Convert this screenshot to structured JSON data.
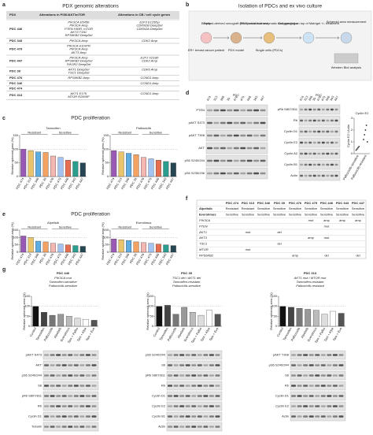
{
  "panel_a": {
    "letter": "a",
    "title": "PDX genomic alterations",
    "header": [
      "PDX",
      "Alterations in PI3K/AKT/mTOR",
      "Alterations in CB / cell cycle genes"
    ],
    "rows": [
      {
        "pdx": "PDC 446",
        "pi3k": [
          "PIK3CA E545K",
          "PIK3CA Amp",
          "PTEN H93R, mTOR",
          "AKT3 T15C",
          "RPS6KB2 DeepDel"
        ],
        "cellcycle": [
          "E2F3 E125fsp",
          "CDKN2B DeepDel",
          "CDKN2A DeepDel"
        ]
      },
      {
        "pdx": "PDC 343",
        "pi3k": [
          "PIK3CA Amp"
        ],
        "cellcycle": [
          "CDK2 Amp"
        ]
      },
      {
        "pdx": "PDC 479",
        "pi3k": [
          "PIK3CA H1047R",
          "PIK3CA Amp",
          "AKT3 Amp"
        ]
      },
      {
        "pdx": "PDC 447",
        "pi3k": [
          "PIK3CA Amp",
          "RPS6KB2 DeepDel",
          "PIK3R2 DeepDel"
        ],
        "cellcycle": [
          "E2F1 V219D",
          "CDK2 Amp"
        ]
      },
      {
        "pdx": "PDC 39",
        "pi3k": [
          "AKT1 DeepDel",
          "TSC1 DeepDel"
        ],
        "cellcycle": [
          "CDK6 Amp"
        ]
      },
      {
        "pdx": "PDC 476",
        "pi3k": [
          "RPS6KB2 Amp"
        ],
        "cellcycle": [
          "CCND1 Amp"
        ]
      },
      {
        "pdx": "PDC 346",
        "cellcycle": [
          "CCND1 Amp"
        ]
      },
      {
        "pdx": "PDC 474"
      },
      {
        "pdx": "PDC 313",
        "pi3k": [
          "AKT1 E17K",
          "MTOR R2505P"
        ],
        "cellcycle": [
          "CCND1 Amp"
        ]
      }
    ]
  },
  "panel_b": {
    "letter": "b",
    "title": "Isolation of PDCs and ex vivo culture",
    "steps": [
      "Biopsy",
      "Patient-derived xenograft (PDX) establishment",
      "Mechanical and enzymatic disaggregation",
      "Cell seeding on top of Matrigel +/- treatment",
      "Spheroid area measurement"
    ],
    "captions": [
      "ER+ breast cancer patient",
      "PDX model",
      "Single cells (PDCs)",
      "Western Blot analysis"
    ]
  },
  "panel_c": {
    "letter": "c",
    "title": "PDC proliferation",
    "charts": [
      {
        "title": "Tamoxifen",
        "ylabel": "Relative spheroid area (%)",
        "groups": [
          "Resistant",
          "Sensitive"
        ],
        "categories": [
          "PDC 474",
          "PDC 313",
          "PDC 346",
          "PDC 39",
          "PDC 476",
          "PDC 479",
          "PDC 446",
          "PDC 343",
          "PDC 447"
        ],
        "values": [
          100,
          95,
          90,
          88,
          75,
          70,
          60,
          55,
          50
        ],
        "colors": [
          "#9b59b6",
          "#e9c46a",
          "#5dade2",
          "#f4a261",
          "#f5b7b1",
          "#a3c4f3",
          "#e76f51",
          "#2a9d8f",
          "#264653"
        ],
        "ylim": [
          0,
          150
        ],
        "yticks": [
          0,
          50,
          100,
          150
        ]
      },
      {
        "title": "Palbociclib",
        "ylabel": "Relative spheroid area (%)",
        "groups": [
          "Resistant",
          "Sensitive"
        ],
        "categories": [
          "PDC 474",
          "PDC 313",
          "PDC 346",
          "PDC 39",
          "PDC 476",
          "PDC 479",
          "PDC 446",
          "PDC 343",
          "PDC 447"
        ],
        "values": [
          95,
          90,
          85,
          80,
          70,
          65,
          60,
          55,
          50
        ],
        "colors": [
          "#9b59b6",
          "#e9c46a",
          "#5dade2",
          "#f4a261",
          "#f5b7b1",
          "#a3c4f3",
          "#e76f51",
          "#2a9d8f",
          "#264653"
        ],
        "ylim": [
          0,
          150
        ],
        "yticks": [
          0,
          50,
          100,
          150
        ]
      }
    ]
  },
  "panel_d": {
    "letter": "d",
    "header": "PDC",
    "lanes": [
      "474",
      "313",
      "346",
      "39",
      "476",
      "479",
      "446",
      "343",
      "447"
    ],
    "left_blot": [
      "PTEN",
      "pAKT S473",
      "pAKT T308",
      "AKT",
      "pS6 S240/244",
      "pS6 S235/236"
    ],
    "right_blot": [
      "pRb S807/811",
      "Rb",
      "Cyclin D1",
      "Cyclin E2",
      "Cyclin A2",
      "Cyclin B1",
      "Actin"
    ],
    "chart": {
      "title": "Cyclin E2",
      "ylabel": "Cyclin E2 / Actin",
      "categories": [
        "Palbociclib-sensitive",
        "Palbociclib-resistant"
      ],
      "values": [
        [
          0.3,
          0.4,
          0.5,
          0.6
        ],
        [
          1.2,
          1.6,
          2.0,
          2.4,
          1.0
        ]
      ],
      "ylim": [
        0,
        3
      ],
      "yticks": [
        0,
        1,
        2,
        3
      ]
    }
  },
  "panel_e": {
    "letter": "e",
    "title": "PDC proliferation",
    "charts": [
      {
        "title": "Alpelisib",
        "ylabel": "Relative spheroid area (%)",
        "groups": [
          "Resistant",
          "Sensitive"
        ],
        "categories": [
          "PDC 474",
          "PDC 313",
          "PDC 346",
          "PDC 39",
          "PDC 476",
          "PDC 479",
          "PDC 446",
          "PDC 343",
          "PDC 447"
        ],
        "values": [
          110,
          100,
          75,
          70,
          60,
          55,
          50,
          45,
          40
        ],
        "colors": [
          "#9b59b6",
          "#e9c46a",
          "#5dade2",
          "#f4a261",
          "#f5b7b1",
          "#a3c4f3",
          "#e76f51",
          "#2a9d8f",
          "#264653"
        ],
        "ylim": [
          0,
          150
        ],
        "yticks": [
          0,
          50,
          100,
          150
        ]
      },
      {
        "title": "Everolimus",
        "ylabel": "Relative spheroid area (%)",
        "groups": [
          "Resistant",
          "Sensitive"
        ],
        "categories": [
          "PDC 474",
          "PDC 313",
          "PDC 346",
          "PDC 39",
          "PDC 476",
          "PDC 479",
          "PDC 446",
          "PDC 343",
          "PDC 447"
        ],
        "values": [
          90,
          85,
          80,
          70,
          65,
          60,
          55,
          50,
          45
        ],
        "colors": [
          "#9b59b6",
          "#e9c46a",
          "#5dade2",
          "#f4a261",
          "#f5b7b1",
          "#a3c4f3",
          "#e76f51",
          "#2a9d8f",
          "#264653"
        ],
        "ylim": [
          0,
          150
        ],
        "yticks": [
          0,
          50,
          100,
          150
        ]
      }
    ]
  },
  "panel_f": {
    "letter": "f",
    "header": [
      "PDC 474",
      "PDC 313",
      "PDC 346",
      "PDC 39",
      "PDC 476",
      "PDC 479",
      "PDC 446",
      "PDC 343",
      "PDC 447"
    ],
    "rows": [
      {
        "label": "Alpelisib",
        "cells": [
          "Resistant",
          "Resistant",
          "Sensitive",
          "Sensitive",
          "Sensitive",
          "Sensitive",
          "Sensitive",
          "Sensitive",
          "Sensitive"
        ]
      },
      {
        "label": "Everolimus",
        "cells": [
          "Sensitive",
          "Sensitive",
          "Sensitive",
          "Sensitive",
          "Sensitive",
          "Sensitive",
          "Sensitive",
          "Sensitive",
          "Sensitive"
        ]
      },
      {
        "label": "PIK3CA",
        "cells": [
          null,
          null,
          null,
          null,
          null,
          "mut",
          "amp",
          "amp",
          "amp"
        ]
      },
      {
        "label": "PTEN",
        "cells": [
          null,
          null,
          null,
          null,
          null,
          null,
          "mut",
          null,
          null
        ]
      },
      {
        "label": "AKT1",
        "cells": [
          null,
          "mut",
          null,
          "del",
          null,
          null,
          null,
          null,
          null
        ]
      },
      {
        "label": "AKT3",
        "cells": [
          null,
          null,
          null,
          null,
          null,
          "amp",
          "mut",
          null,
          null
        ]
      },
      {
        "label": "TSC1",
        "cells": [
          null,
          null,
          null,
          "del",
          null,
          null,
          null,
          null,
          null
        ]
      },
      {
        "label": "MTOR",
        "cells": [
          null,
          "mut",
          null,
          null,
          null,
          null,
          null,
          null,
          null
        ]
      },
      {
        "label": "RPS6KB2",
        "cells": [
          null,
          null,
          null,
          null,
          "amp",
          null,
          "del",
          null,
          "del"
        ]
      }
    ]
  },
  "panel_g": {
    "letter": "g",
    "columns": [
      {
        "title": "PDC 446",
        "lines": [
          "PIK3CA mut",
          "Tamoxifen-sensitive",
          "Palbociclib-sensitive"
        ],
        "chart": {
          "ylabel": "Relative spheroid area (%)",
          "categories": [
            "Control",
            "Tamoxifen",
            "Palbociclib",
            "Alpelisib",
            "Everolimus",
            "Tam + Palbo",
            "Tam + Alpe",
            "Tam + Eve"
          ],
          "values": [
            100,
            70,
            55,
            60,
            50,
            40,
            35,
            30
          ],
          "colors": [
            "#111",
            "#444",
            "#777",
            "#999",
            "#bbb",
            "#ddd",
            "#fff",
            "#555"
          ],
          "ylim": [
            0,
            150
          ],
          "yticks": [
            0,
            50,
            100,
            150
          ]
        },
        "blot": [
          "pAKT S473",
          "AKT",
          "pS6 S240/244",
          "S6",
          "pRb S807/811",
          "Rb",
          "Cyclin D1",
          "Tubulin"
        ]
      },
      {
        "title": "PDC 39",
        "lines": [
          "TSC1 del / AKT1 del",
          "Tamoxifen-resistant",
          "Palbociclib-sensitive"
        ],
        "chart": {
          "ylabel": "Relative spheroid area (%)",
          "categories": [
            "Control",
            "Tamoxifen",
            "Palbociclib",
            "Alpelisib",
            "Everolimus",
            "Tam + Palbo",
            "Tam + Alpe",
            "Tam + Eve"
          ],
          "values": [
            100,
            105,
            60,
            95,
            70,
            55,
            80,
            60
          ],
          "colors": [
            "#111",
            "#444",
            "#777",
            "#999",
            "#bbb",
            "#ddd",
            "#fff",
            "#555"
          ],
          "ylim": [
            0,
            150
          ],
          "yticks": [
            0,
            50,
            100,
            150
          ]
        },
        "blot": [
          "pS6 S240/244",
          "S6",
          "pRb S807/811",
          "Rb",
          "Cyclin D1",
          "Cyclin E2",
          "Cyclin B1",
          "Actin"
        ]
      },
      {
        "title": "PDC 313",
        "lines": [
          "AKT1 mut / MTOR mut",
          "Tamoxifen-resistant",
          "Palbociclib-resistant"
        ],
        "chart": {
          "ylabel": "Relative spheroid area (%)",
          "categories": [
            "Control",
            "Tamoxifen",
            "Palbociclib",
            "Alpelisib",
            "Everolimus",
            "Tam + Palbo",
            "Tam + Alpe",
            "Tam + Eve"
          ],
          "values": [
            100,
            95,
            90,
            85,
            80,
            60,
            75,
            65
          ],
          "colors": [
            "#111",
            "#444",
            "#777",
            "#999",
            "#bbb",
            "#ddd",
            "#fff",
            "#555"
          ],
          "ylim": [
            0,
            150
          ],
          "yticks": [
            0,
            50,
            100,
            150
          ]
        },
        "blot": [
          "pAKT T308",
          "pS6 S240/244",
          "S6",
          "Rb",
          "Cyclin D1",
          "Cyclin E2",
          "Actin"
        ]
      }
    ]
  }
}
